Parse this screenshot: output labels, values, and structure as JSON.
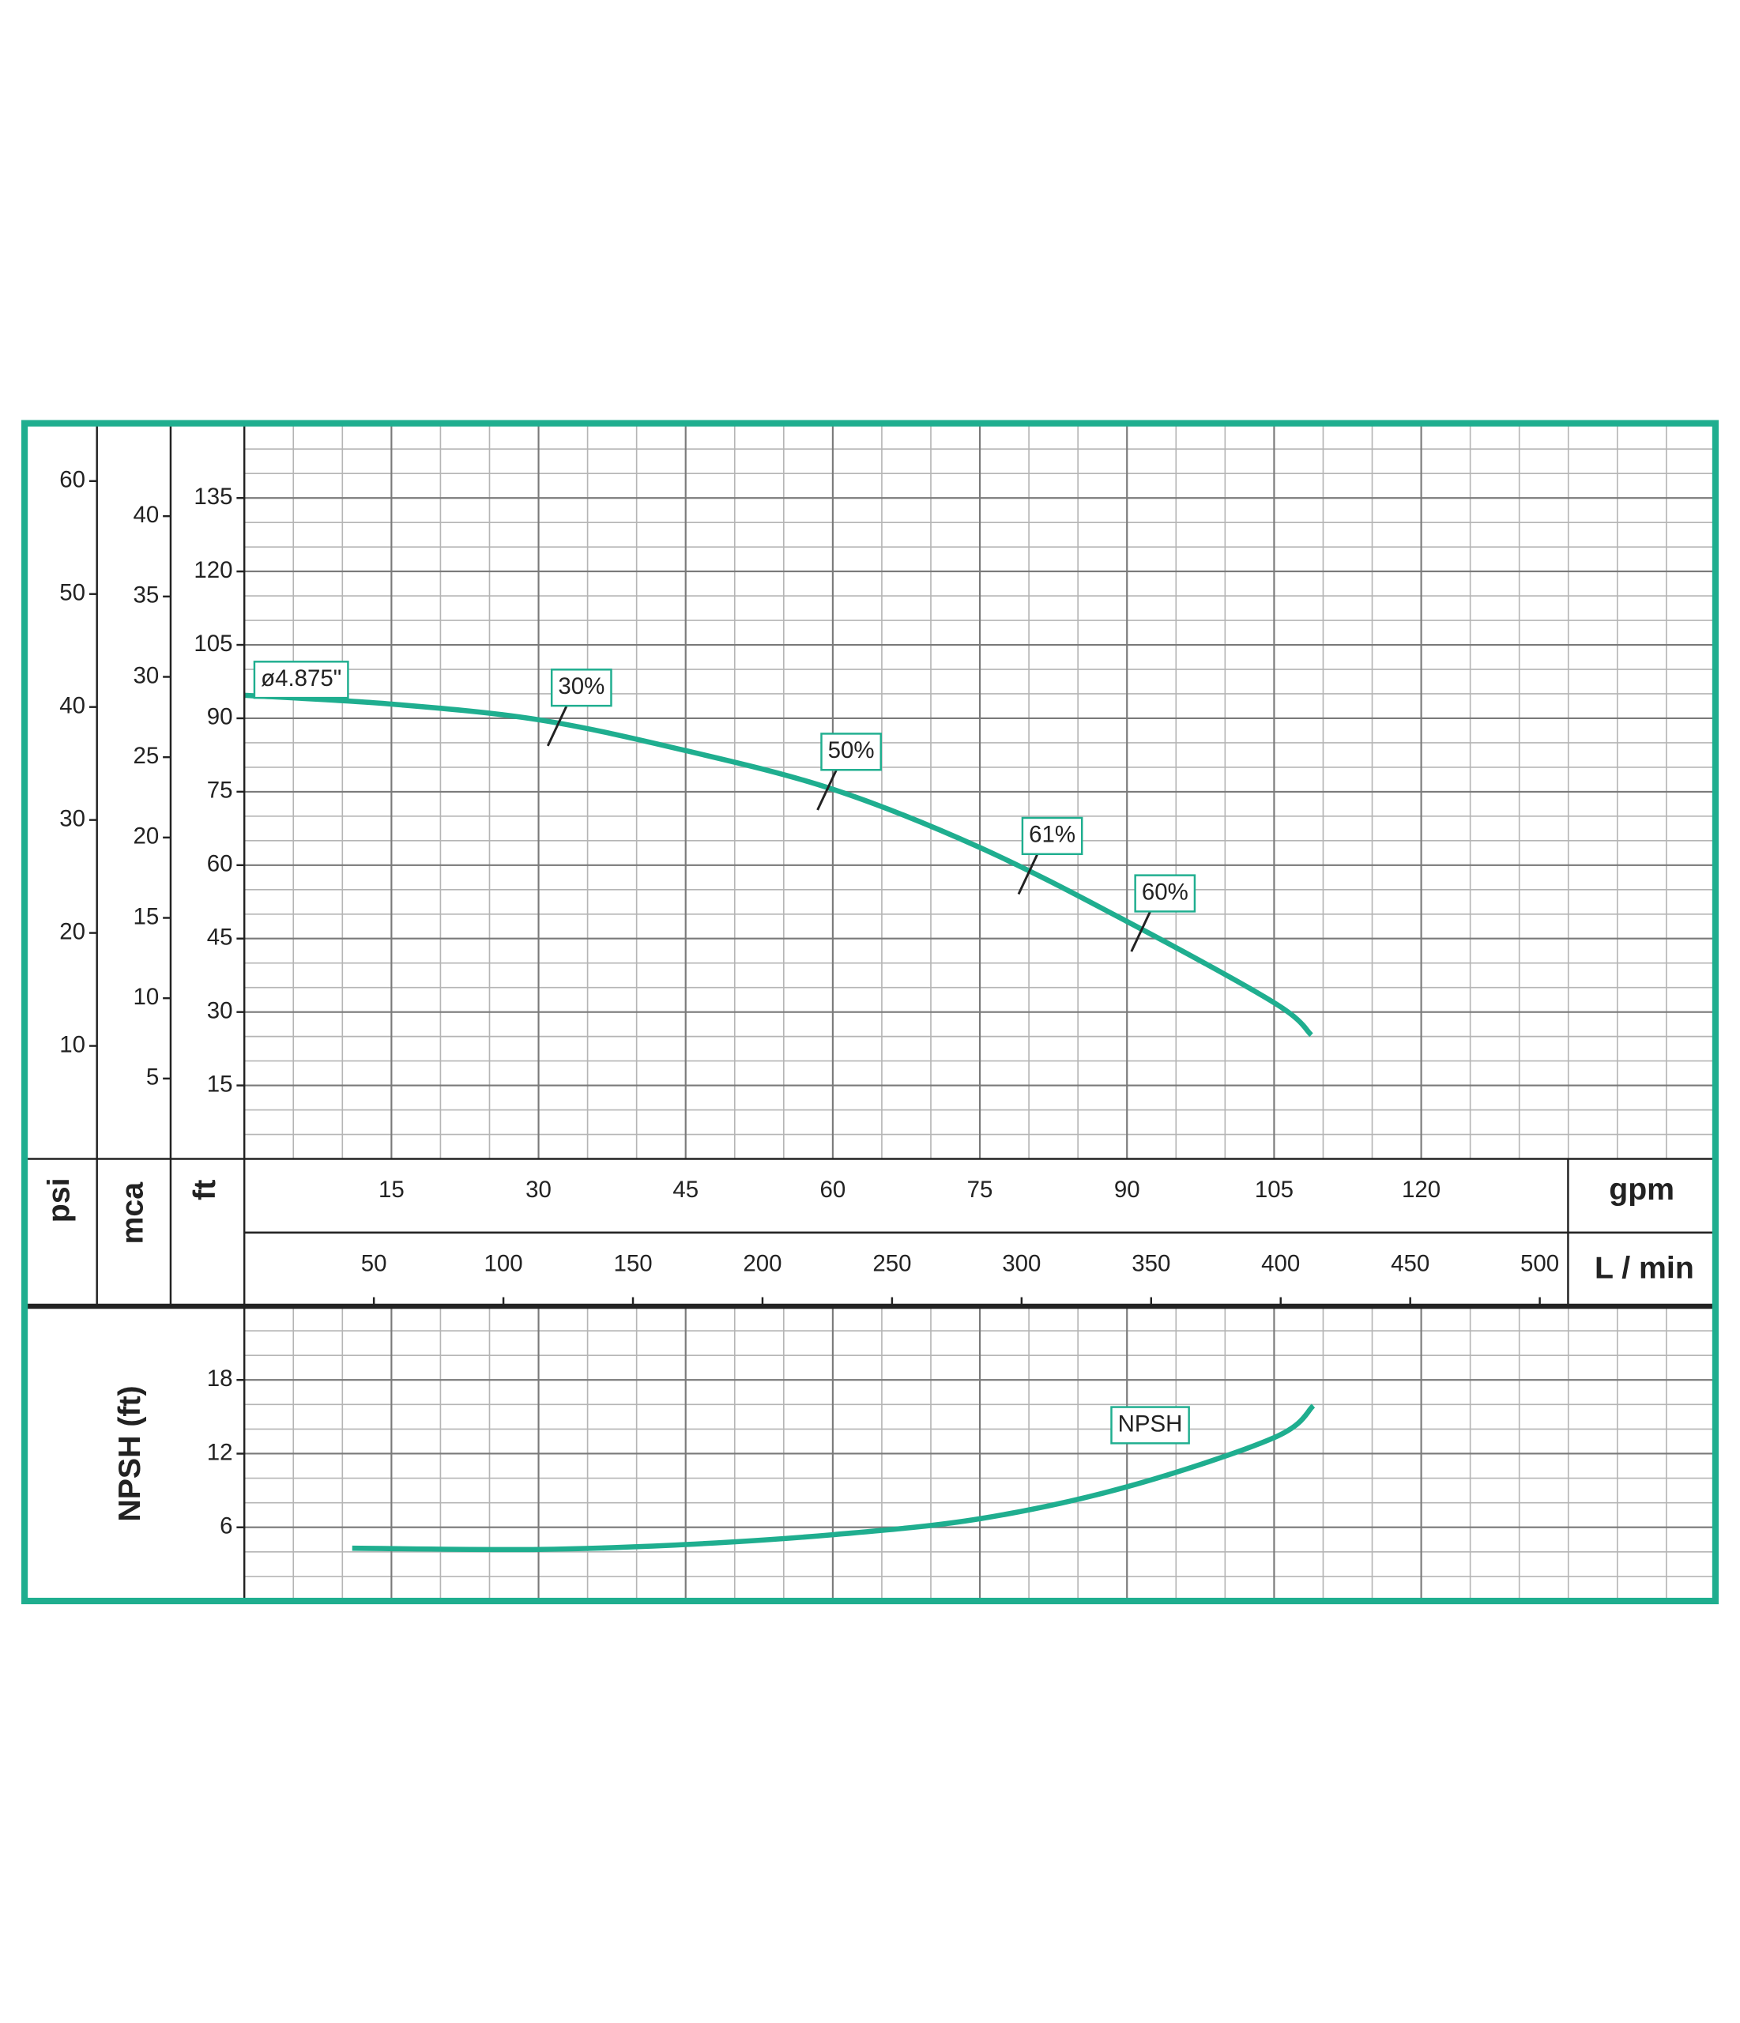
{
  "chart_data": [
    {
      "type": "line",
      "x_label": "gpm",
      "xlim": [
        0,
        150
      ],
      "xticks": [
        15,
        30,
        45,
        60,
        75,
        90,
        105,
        120
      ],
      "x2_label": "L / min",
      "x2lim": [
        0,
        567.8
      ],
      "x2ticks": [
        50,
        100,
        150,
        200,
        250,
        300,
        350,
        400,
        450,
        500
      ],
      "y_label": "ft",
      "ylim": [
        0,
        150
      ],
      "yticks": [
        15,
        30,
        45,
        60,
        75,
        90,
        105,
        120,
        135
      ],
      "y2_label": "psi",
      "y2lim": [
        0,
        65
      ],
      "y2ticks": [
        10,
        20,
        30,
        40,
        50,
        60
      ],
      "y3_label": "mca",
      "y3lim": [
        0,
        45.7
      ],
      "y3ticks": [
        5,
        10,
        15,
        20,
        25,
        30,
        35,
        40
      ],
      "grid": true,
      "grid_minor": {
        "x": 5,
        "y": 5
      },
      "series": [
        {
          "name": "ø4.875\"",
          "color": "#1fae8f",
          "x": [
            0,
            15,
            30,
            45,
            60,
            75,
            90,
            105,
            108.8
          ],
          "values": [
            94.7,
            92.9,
            89.7,
            83.4,
            75.5,
            63.6,
            48.5,
            31.9,
            25.3
          ]
        }
      ],
      "efficiency": {
        "x": [
          32,
          59.5,
          80,
          91.5
        ],
        "values": [
          30,
          50,
          61,
          60
        ],
        "value_labels": [
          "30%",
          "50%",
          "61%",
          "60%"
        ]
      }
    },
    {
      "type": "line",
      "y_label": "NPSH (ft)",
      "xlim": [
        0,
        150
      ],
      "xticks": [
        15,
        30,
        45,
        60,
        75,
        90,
        105,
        120
      ],
      "ylim": [
        0,
        24
      ],
      "yticks": [
        6,
        12,
        18
      ],
      "grid": true,
      "grid_minor": {
        "x": 5,
        "y": 2
      },
      "series": [
        {
          "name": "NPSH",
          "color": "#1fae8f",
          "x": [
            11,
            30,
            45,
            60,
            75,
            90,
            105,
            109
          ],
          "values": [
            4.3,
            4.2,
            4.6,
            5.4,
            6.7,
            9.3,
            13.3,
            15.9
          ]
        }
      ]
    }
  ]
}
